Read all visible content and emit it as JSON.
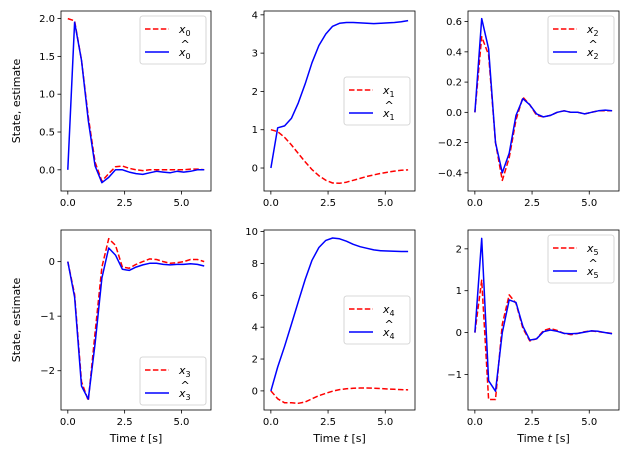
{
  "chart_data": [
    {
      "type": "line",
      "xlim": [
        -0.3,
        6.3
      ],
      "ylim": [
        -0.28,
        2.1
      ],
      "xticks": [
        0,
        2.5,
        5
      ],
      "xtick_labels": [
        "0.0",
        "2.5",
        "5.0"
      ],
      "yticks": [
        0,
        0.5,
        1,
        1.5,
        2
      ],
      "ytick_labels": [
        "0.0",
        "0.5",
        "1.0",
        "1.5",
        "2.0"
      ],
      "xlabel": "",
      "ylabel": "State, estimate",
      "legend_loc": "upper right",
      "series": [
        {
          "name": "x0",
          "label_base": "x",
          "hat": false,
          "sub": "0",
          "color": "#ff0000",
          "dash": true,
          "x": [
            0,
            0.3,
            0.6,
            0.9,
            1.2,
            1.5,
            1.8,
            2.1,
            2.4,
            2.7,
            3.0,
            3.3,
            3.6,
            3.9,
            4.2,
            4.5,
            4.8,
            5.1,
            5.4,
            5.7,
            6.0
          ],
          "y": [
            2.0,
            1.97,
            1.45,
            0.7,
            0.1,
            -0.15,
            -0.05,
            0.04,
            0.05,
            0.02,
            0.0,
            -0.01,
            0.0,
            0.0,
            0.0,
            0.0,
            0.0,
            0.0,
            0.01,
            0.01,
            0.0
          ]
        },
        {
          "name": "x0 hat",
          "label_base": "x",
          "hat": true,
          "sub": "0",
          "color": "#0000ff",
          "dash": false,
          "x": [
            0,
            0.3,
            0.6,
            0.9,
            1.2,
            1.5,
            1.8,
            2.1,
            2.4,
            2.7,
            3.0,
            3.3,
            3.6,
            3.9,
            4.2,
            4.5,
            4.8,
            5.1,
            5.4,
            5.7,
            6.0
          ],
          "y": [
            0.0,
            1.95,
            1.45,
            0.65,
            0.05,
            -0.17,
            -0.1,
            0.0,
            0.0,
            -0.03,
            -0.05,
            -0.06,
            -0.04,
            -0.02,
            -0.03,
            -0.04,
            -0.02,
            -0.03,
            -0.02,
            0.0,
            0.0
          ]
        }
      ]
    },
    {
      "type": "line",
      "xlim": [
        -0.3,
        6.3
      ],
      "ylim": [
        -0.6,
        4.1
      ],
      "xticks": [
        0,
        2.5,
        5
      ],
      "xtick_labels": [
        "0.0",
        "2.5",
        "5.0"
      ],
      "yticks": [
        0,
        1,
        2,
        3,
        4
      ],
      "ytick_labels": [
        "0",
        "1",
        "2",
        "3",
        "4"
      ],
      "xlabel": "",
      "ylabel": "",
      "legend_loc": "center right",
      "series": [
        {
          "name": "x1",
          "label_base": "x",
          "hat": false,
          "sub": "1",
          "color": "#ff0000",
          "dash": true,
          "x": [
            0,
            0.3,
            0.6,
            0.9,
            1.2,
            1.5,
            1.8,
            2.1,
            2.4,
            2.7,
            3.0,
            3.3,
            3.6,
            3.9,
            4.2,
            4.5,
            4.8,
            5.1,
            5.4,
            5.7,
            6.0
          ],
          "y": [
            1.0,
            0.95,
            0.8,
            0.6,
            0.38,
            0.16,
            -0.04,
            -0.2,
            -0.32,
            -0.39,
            -0.4,
            -0.37,
            -0.32,
            -0.27,
            -0.22,
            -0.18,
            -0.14,
            -0.11,
            -0.08,
            -0.06,
            -0.05
          ]
        },
        {
          "name": "x1 hat",
          "label_base": "x",
          "hat": true,
          "sub": "1",
          "color": "#0000ff",
          "dash": false,
          "x": [
            0,
            0.3,
            0.6,
            0.9,
            1.2,
            1.5,
            1.8,
            2.1,
            2.4,
            2.7,
            3.0,
            3.3,
            3.6,
            3.9,
            4.2,
            4.5,
            4.8,
            5.1,
            5.4,
            5.7,
            6.0
          ],
          "y": [
            0.0,
            1.05,
            1.1,
            1.3,
            1.7,
            2.2,
            2.75,
            3.2,
            3.5,
            3.7,
            3.78,
            3.8,
            3.8,
            3.79,
            3.78,
            3.77,
            3.78,
            3.79,
            3.8,
            3.82,
            3.85
          ]
        }
      ]
    },
    {
      "type": "line",
      "xlim": [
        -0.3,
        6.3
      ],
      "ylim": [
        -0.52,
        0.67
      ],
      "xticks": [
        0,
        2.5,
        5
      ],
      "xtick_labels": [
        "0.0",
        "2.5",
        "5.0"
      ],
      "yticks": [
        -0.4,
        -0.2,
        0,
        0.2,
        0.4,
        0.6
      ],
      "ytick_labels": [
        "−0.4",
        "−0.2",
        "0.0",
        "0.2",
        "0.4",
        "0.6"
      ],
      "xlabel": "",
      "ylabel": "",
      "legend_loc": "upper right",
      "series": [
        {
          "name": "x2",
          "label_base": "x",
          "hat": false,
          "sub": "2",
          "color": "#ff0000",
          "dash": true,
          "x": [
            0,
            0.3,
            0.6,
            0.9,
            1.2,
            1.5,
            1.8,
            2.1,
            2.4,
            2.7,
            3.0,
            3.3,
            3.6,
            3.9,
            4.2,
            4.5,
            4.8,
            5.1,
            5.4,
            5.7,
            6.0
          ],
          "y": [
            0.0,
            0.5,
            0.38,
            -0.2,
            -0.45,
            -0.3,
            -0.05,
            0.1,
            0.05,
            -0.02,
            -0.03,
            -0.02,
            0.0,
            0.01,
            0.0,
            0.0,
            -0.01,
            0.0,
            0.01,
            0.01,
            0.01
          ]
        },
        {
          "name": "x2 hat",
          "label_base": "x",
          "hat": true,
          "sub": "2",
          "color": "#0000ff",
          "dash": false,
          "x": [
            0,
            0.3,
            0.6,
            0.9,
            1.2,
            1.5,
            1.8,
            2.1,
            2.4,
            2.7,
            3.0,
            3.3,
            3.6,
            3.9,
            4.2,
            4.5,
            4.8,
            5.1,
            5.4,
            5.7,
            6.0
          ],
          "y": [
            0.0,
            0.62,
            0.42,
            -0.2,
            -0.4,
            -0.27,
            -0.02,
            0.09,
            0.05,
            -0.01,
            -0.03,
            -0.02,
            0.0,
            0.01,
            0.0,
            0.0,
            -0.01,
            0.0,
            0.01,
            0.015,
            0.01
          ]
        }
      ]
    },
    {
      "type": "line",
      "xlim": [
        -0.3,
        6.3
      ],
      "ylim": [
        -2.72,
        0.58
      ],
      "xticks": [
        0,
        2.5,
        5
      ],
      "xtick_labels": [
        "0.0",
        "2.5",
        "5.0"
      ],
      "yticks": [
        -2,
        -1,
        0
      ],
      "ytick_labels": [
        "−2",
        "−1",
        "0"
      ],
      "xlabel": "Time t [s]",
      "ylabel": "State, estimate",
      "legend_loc": "lower right",
      "series": [
        {
          "name": "x3",
          "label_base": "x",
          "hat": false,
          "sub": "3",
          "color": "#ff0000",
          "dash": true,
          "x": [
            0,
            0.3,
            0.6,
            0.9,
            1.2,
            1.5,
            1.8,
            2.1,
            2.4,
            2.7,
            3.0,
            3.3,
            3.6,
            3.9,
            4.2,
            4.5,
            4.8,
            5.1,
            5.4,
            5.7,
            6.0
          ],
          "y": [
            0.0,
            -0.6,
            -2.2,
            -2.55,
            -1.3,
            -0.1,
            0.42,
            0.3,
            -0.1,
            -0.12,
            -0.05,
            0.0,
            0.05,
            0.04,
            0.0,
            -0.03,
            -0.02,
            0.0,
            0.04,
            0.04,
            0.0
          ]
        },
        {
          "name": "x3 hat",
          "label_base": "x",
          "hat": true,
          "sub": "3",
          "color": "#0000ff",
          "dash": false,
          "x": [
            0,
            0.3,
            0.6,
            0.9,
            1.2,
            1.5,
            1.8,
            2.1,
            2.4,
            2.7,
            3.0,
            3.3,
            3.6,
            3.9,
            4.2,
            4.5,
            4.8,
            5.1,
            5.4,
            5.7,
            6.0
          ],
          "y": [
            0.0,
            -0.65,
            -2.28,
            -2.52,
            -1.5,
            -0.3,
            0.25,
            0.12,
            -0.14,
            -0.16,
            -0.1,
            -0.06,
            -0.03,
            -0.03,
            -0.05,
            -0.06,
            -0.05,
            -0.05,
            -0.04,
            -0.05,
            -0.08
          ]
        }
      ]
    },
    {
      "type": "line",
      "xlim": [
        -0.3,
        6.3
      ],
      "ylim": [
        -1.2,
        10.1
      ],
      "xticks": [
        0,
        2.5,
        5
      ],
      "xtick_labels": [
        "0.0",
        "2.5",
        "5.0"
      ],
      "yticks": [
        0,
        2,
        4,
        6,
        8,
        10
      ],
      "ytick_labels": [
        "0",
        "2",
        "4",
        "6",
        "8",
        "10"
      ],
      "xlabel": "Time t [s]",
      "ylabel": "",
      "legend_loc": "center right",
      "series": [
        {
          "name": "x4",
          "label_base": "x",
          "hat": false,
          "sub": "4",
          "color": "#ff0000",
          "dash": true,
          "x": [
            0,
            0.3,
            0.6,
            0.9,
            1.2,
            1.5,
            1.8,
            2.1,
            2.4,
            2.7,
            3.0,
            3.3,
            3.6,
            3.9,
            4.2,
            4.5,
            4.8,
            5.1,
            5.4,
            5.7,
            6.0
          ],
          "y": [
            0.0,
            -0.5,
            -0.75,
            -0.75,
            -0.78,
            -0.7,
            -0.5,
            -0.3,
            -0.15,
            -0.02,
            0.08,
            0.13,
            0.16,
            0.18,
            0.18,
            0.17,
            0.15,
            0.12,
            0.1,
            0.08,
            0.06
          ]
        },
        {
          "name": "x4 hat",
          "label_base": "x",
          "hat": true,
          "sub": "4",
          "color": "#0000ff",
          "dash": false,
          "x": [
            0,
            0.3,
            0.6,
            0.9,
            1.2,
            1.5,
            1.8,
            2.1,
            2.4,
            2.7,
            3.0,
            3.3,
            3.6,
            3.9,
            4.2,
            4.5,
            4.8,
            5.1,
            5.4,
            5.7,
            6.0
          ],
          "y": [
            0.0,
            1.5,
            2.8,
            4.2,
            5.6,
            7.0,
            8.2,
            9.0,
            9.45,
            9.6,
            9.55,
            9.4,
            9.2,
            9.05,
            8.95,
            8.85,
            8.8,
            8.78,
            8.76,
            8.75,
            8.75
          ]
        }
      ]
    },
    {
      "type": "line",
      "xlim": [
        -0.3,
        6.3
      ],
      "ylim": [
        -1.85,
        2.45
      ],
      "xticks": [
        0,
        2.5,
        5
      ],
      "xtick_labels": [
        "0.0",
        "2.5",
        "5.0"
      ],
      "yticks": [
        -1,
        0,
        1,
        2
      ],
      "ytick_labels": [
        "−1",
        "0",
        "1",
        "2"
      ],
      "xlabel": "Time t [s]",
      "ylabel": "",
      "legend_loc": "upper right",
      "series": [
        {
          "name": "x5",
          "label_base": "x",
          "hat": false,
          "sub": "5",
          "color": "#ff0000",
          "dash": true,
          "x": [
            0,
            0.3,
            0.6,
            0.9,
            1.2,
            1.5,
            1.8,
            2.1,
            2.4,
            2.7,
            3.0,
            3.3,
            3.6,
            3.9,
            4.2,
            4.5,
            4.8,
            5.1,
            5.4,
            5.7,
            6.0
          ],
          "y": [
            0.0,
            1.25,
            -1.6,
            -1.6,
            0.2,
            0.9,
            0.7,
            0.1,
            -0.2,
            -0.15,
            0.05,
            0.1,
            0.05,
            -0.02,
            -0.05,
            -0.02,
            0.02,
            0.04,
            0.02,
            0.0,
            -0.02
          ]
        },
        {
          "name": "x5 hat",
          "label_base": "x",
          "hat": true,
          "sub": "5",
          "color": "#0000ff",
          "dash": false,
          "x": [
            0,
            0.3,
            0.6,
            0.9,
            1.2,
            1.5,
            1.8,
            2.1,
            2.4,
            2.7,
            3.0,
            3.3,
            3.6,
            3.9,
            4.2,
            4.5,
            4.8,
            5.1,
            5.4,
            5.7,
            6.0
          ],
          "y": [
            0.0,
            2.25,
            -1.15,
            -1.4,
            0.0,
            0.78,
            0.72,
            0.15,
            -0.18,
            -0.15,
            0.02,
            0.06,
            0.03,
            -0.02,
            -0.03,
            -0.02,
            0.01,
            0.04,
            0.03,
            0.0,
            -0.03
          ]
        }
      ]
    }
  ]
}
